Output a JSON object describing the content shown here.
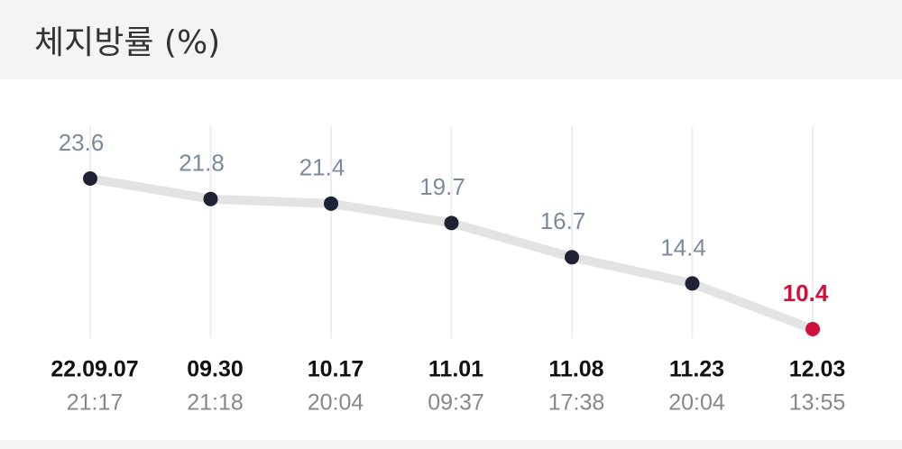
{
  "chart_data": {
    "type": "line",
    "title": "체지방률 (%)",
    "categories": [
      "22.09.07",
      "09.30",
      "10.17",
      "11.01",
      "11.08",
      "11.23",
      "12.03"
    ],
    "times": [
      "21:17",
      "21:18",
      "20:04",
      "09:37",
      "17:38",
      "20:04",
      "13:55"
    ],
    "values": [
      23.6,
      21.8,
      21.4,
      19.7,
      16.7,
      14.4,
      10.4
    ],
    "color": "#1e2233",
    "line_color": "#e3e3e3",
    "label_color": "#7b8a9c",
    "highlight_color": "#d0113c",
    "grid": true
  }
}
